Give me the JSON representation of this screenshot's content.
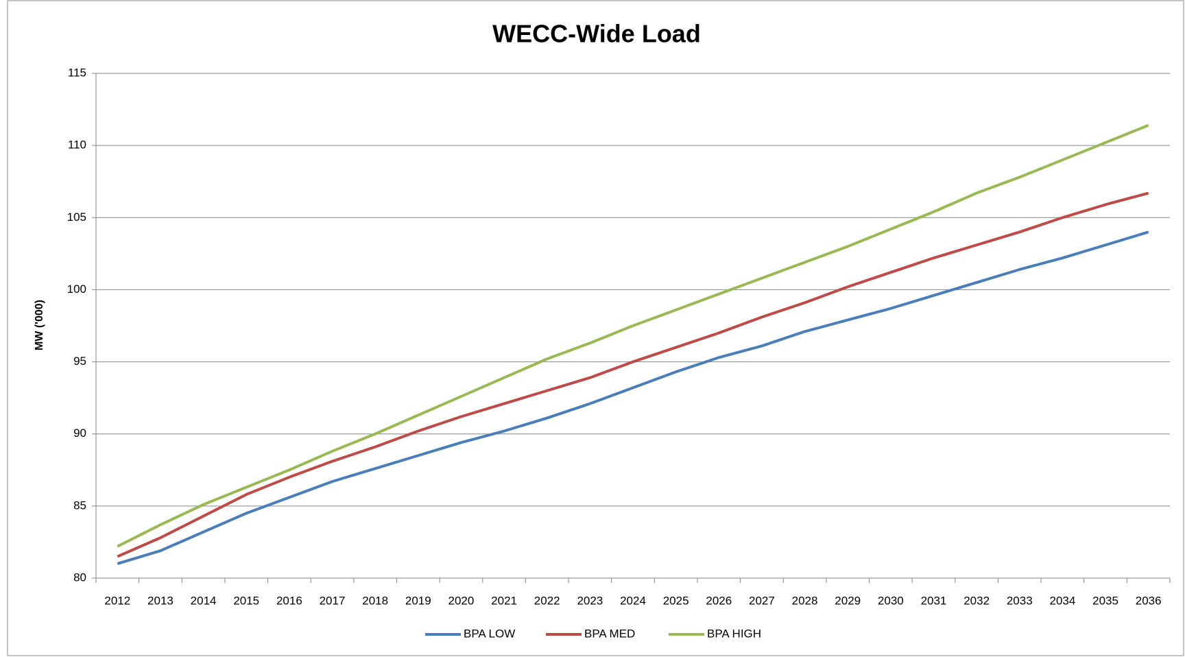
{
  "chart_data": {
    "type": "line",
    "title": "WECC-Wide Load",
    "y_label": "MW ('000)",
    "categories": [
      "2012",
      "2013",
      "2014",
      "2015",
      "2016",
      "2017",
      "2018",
      "2019",
      "2020",
      "2021",
      "2022",
      "2023",
      "2024",
      "2025",
      "2026",
      "2027",
      "2028",
      "2029",
      "2030",
      "2031",
      "2032",
      "2033",
      "2034",
      "2035",
      "2036"
    ],
    "series": [
      {
        "name": "BPA LOW",
        "color": "#4a7ebb",
        "values": [
          81.0,
          81.9,
          83.2,
          84.5,
          85.6,
          86.7,
          87.6,
          88.5,
          89.4,
          90.2,
          91.1,
          92.1,
          93.2,
          94.3,
          95.3,
          96.1,
          97.1,
          97.9,
          98.7,
          99.6,
          100.5,
          101.4,
          102.2,
          103.1,
          104.0
        ]
      },
      {
        "name": "BPA MED",
        "color": "#be4b48",
        "values": [
          81.5,
          82.8,
          84.3,
          85.8,
          87.0,
          88.1,
          89.1,
          90.2,
          91.2,
          92.1,
          93.0,
          93.9,
          95.0,
          96.0,
          97.0,
          98.1,
          99.1,
          100.2,
          101.2,
          102.2,
          103.1,
          104.0,
          105.0,
          105.9,
          106.7
        ]
      },
      {
        "name": "BPA HIGH",
        "color": "#98b954",
        "values": [
          82.2,
          83.7,
          85.1,
          86.3,
          87.5,
          88.8,
          90.0,
          91.3,
          92.6,
          93.9,
          95.2,
          96.3,
          97.5,
          98.6,
          99.7,
          100.8,
          101.9,
          103.0,
          104.2,
          105.4,
          106.7,
          107.8,
          109.0,
          110.2,
          111.4
        ]
      }
    ],
    "ylim": [
      80,
      115
    ],
    "yticks": [
      80,
      85,
      90,
      95,
      100,
      105,
      110,
      115
    ],
    "grid": true,
    "legend": "bottom"
  }
}
